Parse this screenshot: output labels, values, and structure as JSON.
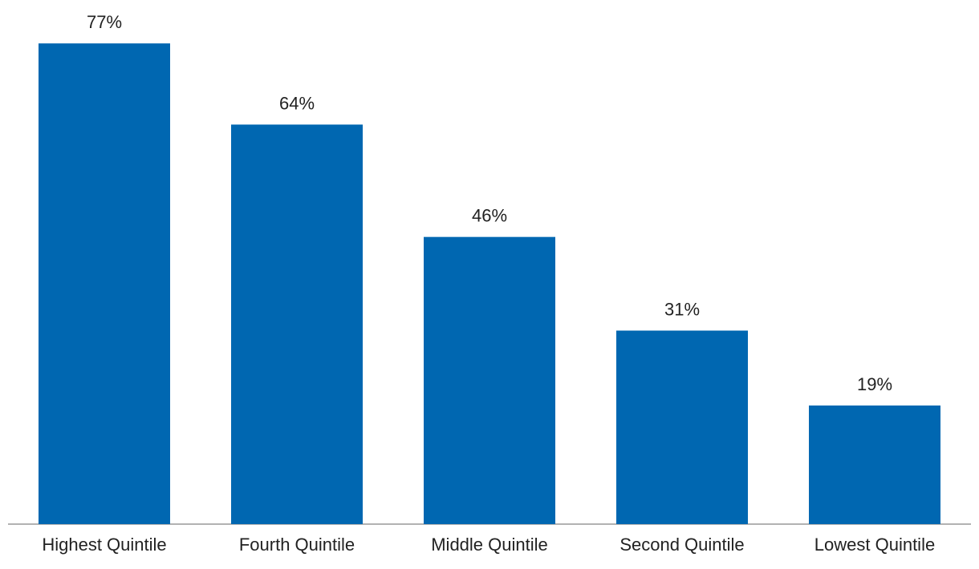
{
  "chart_data": {
    "type": "bar",
    "categories": [
      "Highest Quintile",
      "Fourth Quintile",
      "Middle Quintile",
      "Second Quintile",
      "Lowest Quintile"
    ],
    "values": [
      77,
      64,
      46,
      31,
      19
    ],
    "value_labels": [
      "77%",
      "64%",
      "46%",
      "31%",
      "19%"
    ],
    "color": "#0067b1"
  }
}
